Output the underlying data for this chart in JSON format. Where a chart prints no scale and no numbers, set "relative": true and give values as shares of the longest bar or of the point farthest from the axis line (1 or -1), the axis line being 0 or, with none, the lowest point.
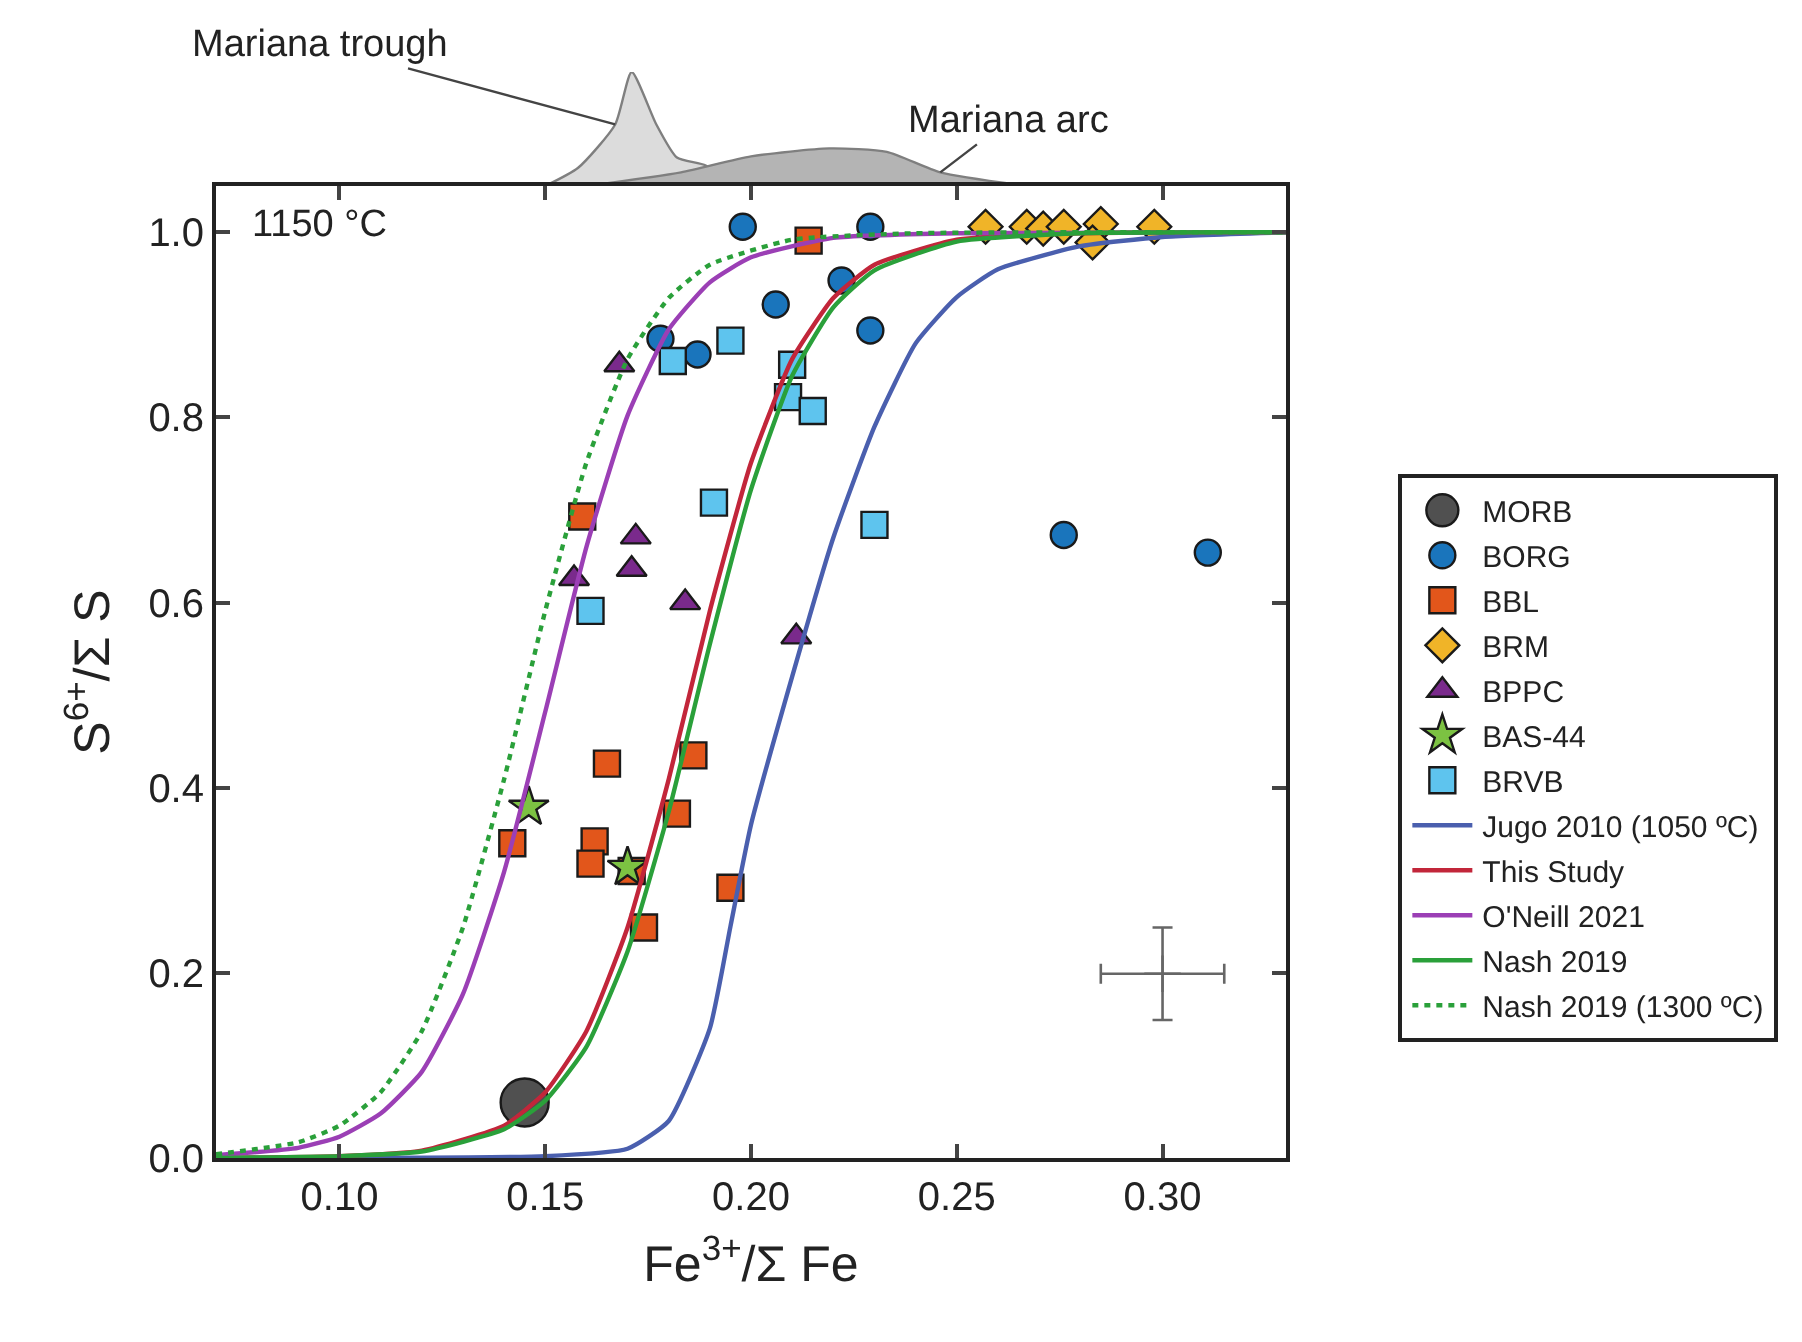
{
  "chart_data": [
    {
      "type": "area",
      "relative": true,
      "xlim": [
        0.07,
        0.33
      ],
      "legend": false,
      "series": [
        {
          "name": "Mariana trough",
          "color": "#dcdcdc",
          "x": [
            0.15,
            0.158,
            0.167,
            0.171,
            0.177,
            0.182,
            0.189,
            0.195
          ],
          "values": [
            0,
            0.16,
            0.54,
            1,
            0.54,
            0.25,
            0.18,
            0
          ]
        },
        {
          "name": "Mariana arc",
          "color": "#b4b4b4",
          "x": [
            0.16,
            0.183,
            0.2,
            0.219,
            0.233,
            0.246,
            0.267
          ],
          "values": [
            0,
            0.12,
            0.26,
            0.33,
            0.3,
            0.12,
            0
          ]
        }
      ]
    },
    {
      "type": "scatter",
      "xlabel": "Fe$^{3+}$/Σ Fe",
      "ylabel": "S$^{6+}$/Σ S",
      "xlim": [
        0.07,
        0.33
      ],
      "ylim": [
        0,
        1.05
      ],
      "xticks": [
        {
          "value": 0.1,
          "label": "0.10"
        },
        {
          "value": 0.15,
          "label": "0.15"
        },
        {
          "value": 0.2,
          "label": "0.20"
        },
        {
          "value": 0.25,
          "label": "0.25"
        },
        {
          "value": 0.3,
          "label": "0.30"
        }
      ],
      "yticks": [
        {
          "value": 0,
          "label": "0.0"
        },
        0.2,
        0.4,
        0.6,
        0.8,
        {
          "value": 1,
          "label": "1.0"
        }
      ],
      "legend": "right",
      "annotations": [
        "1150 °C"
      ],
      "series": [
        {
          "name": "MORB",
          "type": "scatter",
          "marker": "circle",
          "color": "#505050",
          "x": [
            0.145
          ],
          "values": [
            0.06
          ]
        },
        {
          "name": "BORG",
          "type": "scatter",
          "marker": "circle",
          "color": "#1a75bc",
          "x": [
            0.198,
            0.229,
            0.178,
            0.187,
            0.206,
            0.222,
            0.229,
            0.276,
            0.311
          ],
          "values": [
            1.006,
            1.006,
            0.885,
            0.868,
            0.922,
            0.948,
            0.894,
            0.673,
            0.654
          ]
        },
        {
          "name": "BBL",
          "type": "scatter",
          "marker": "square",
          "color": "#e2561b",
          "x": [
            0.214,
            0.159,
            0.142,
            0.162,
            0.161,
            0.165,
            0.186,
            0.182,
            0.171,
            0.174,
            0.195
          ],
          "values": [
            0.991,
            0.693,
            0.34,
            0.342,
            0.318,
            0.426,
            0.435,
            0.372,
            0.31,
            0.249,
            0.292
          ]
        },
        {
          "name": "BRM",
          "type": "scatter",
          "marker": "diamond",
          "color": "#f0b428",
          "x": [
            0.257,
            0.267,
            0.271,
            0.276,
            0.285,
            0.283,
            0.298
          ],
          "values": [
            1.006,
            1.006,
            1.004,
            1.006,
            1.009,
            0.989,
            1.006
          ]
        },
        {
          "name": "BPPC",
          "type": "scatter",
          "marker": "triangle",
          "color": "#7a2a8c",
          "x": [
            0.168,
            0.172,
            0.171,
            0.157,
            0.184,
            0.211
          ],
          "values": [
            0.857,
            0.671,
            0.636,
            0.626,
            0.6,
            0.563
          ]
        },
        {
          "name": "BAS-44",
          "type": "scatter",
          "marker": "star",
          "color": "#7cc242",
          "x": [
            0.146,
            0.17
          ],
          "values": [
            0.379,
            0.314
          ]
        },
        {
          "name": "BRVB",
          "type": "scatter",
          "marker": "square",
          "color": "#5ec4ee",
          "x": [
            0.181,
            0.195,
            0.191,
            0.161,
            0.21,
            0.209,
            0.215,
            0.23
          ],
          "values": [
            0.861,
            0.883,
            0.708,
            0.591,
            0.857,
            0.822,
            0.807,
            0.684
          ]
        },
        {
          "name": "Jugo 2010 (1050 ºC)",
          "type": "line",
          "marker": "none",
          "line_style": "solid",
          "color": "#4a5fae",
          "x": [
            0.07,
            0.15,
            0.17,
            0.18,
            0.19,
            0.195,
            0.2,
            0.21,
            0.22,
            0.23,
            0.24,
            0.25,
            0.26,
            0.28,
            0.3,
            0.33
          ],
          "values": [
            0,
            0.002,
            0.01,
            0.04,
            0.14,
            0.25,
            0.36,
            0.52,
            0.67,
            0.79,
            0.88,
            0.93,
            0.96,
            0.985,
            0.995,
            1.0
          ]
        },
        {
          "name": "This Study",
          "type": "line",
          "marker": "none",
          "line_style": "solid",
          "color": "#c2263a",
          "x": [
            0.07,
            0.1,
            0.12,
            0.14,
            0.15,
            0.16,
            0.17,
            0.18,
            0.19,
            0.2,
            0.21,
            0.22,
            0.23,
            0.25,
            0.28,
            0.33
          ],
          "values": [
            0,
            0.002,
            0.008,
            0.035,
            0.071,
            0.137,
            0.249,
            0.409,
            0.591,
            0.751,
            0.863,
            0.929,
            0.965,
            0.992,
            0.999,
            1.0
          ]
        },
        {
          "name": "O'Neill 2021",
          "type": "line",
          "marker": "none",
          "line_style": "solid",
          "color": "#9b3fb5",
          "x": [
            0.07,
            0.09,
            0.1,
            0.11,
            0.12,
            0.13,
            0.14,
            0.15,
            0.16,
            0.17,
            0.18,
            0.19,
            0.2,
            0.22,
            0.25,
            0.33
          ],
          "values": [
            0.003,
            0.011,
            0.023,
            0.048,
            0.093,
            0.177,
            0.309,
            0.482,
            0.66,
            0.802,
            0.895,
            0.946,
            0.973,
            0.994,
            0.999,
            1.0
          ]
        },
        {
          "name": "Nash 2019",
          "type": "line",
          "marker": "none",
          "line_style": "solid",
          "color": "#2aa03a",
          "x": [
            0.07,
            0.1,
            0.12,
            0.14,
            0.15,
            0.16,
            0.17,
            0.18,
            0.19,
            0.2,
            0.21,
            0.22,
            0.23,
            0.25,
            0.28,
            0.33
          ],
          "values": [
            0,
            0.002,
            0.007,
            0.031,
            0.062,
            0.12,
            0.223,
            0.374,
            0.555,
            0.722,
            0.845,
            0.919,
            0.959,
            0.99,
            0.999,
            1.0
          ]
        },
        {
          "name": "Nash 2019 (1300 ºC)",
          "type": "line",
          "marker": "none",
          "line_style": "dotted",
          "color": "#2aa03a",
          "x": [
            0.07,
            0.09,
            0.1,
            0.11,
            0.12,
            0.13,
            0.14,
            0.15,
            0.16,
            0.17,
            0.18,
            0.19,
            0.21,
            0.24,
            0.33
          ],
          "values": [
            0.004,
            0.017,
            0.035,
            0.071,
            0.137,
            0.249,
            0.409,
            0.591,
            0.751,
            0.863,
            0.929,
            0.965,
            0.992,
            0.999,
            1.0
          ]
        },
        {
          "type": "scatter",
          "marker": "cross",
          "color": "#666666",
          "x": [
            0.3
          ],
          "values": [
            0.199
          ],
          "errors": [
            0.05
          ],
          "xerrors": [
            0.015
          ]
        }
      ]
    }
  ]
}
